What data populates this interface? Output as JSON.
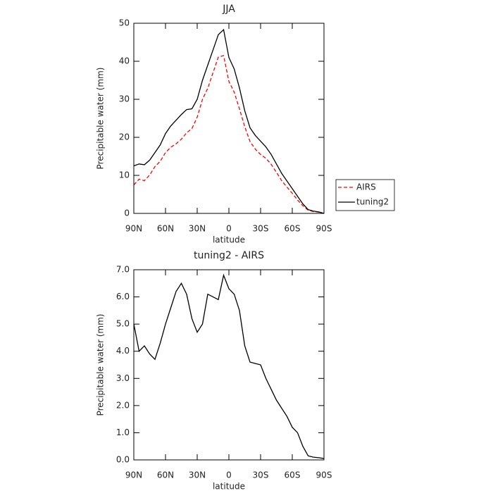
{
  "chart_data": [
    {
      "type": "line",
      "title": "JJA",
      "xlabel": "latitude",
      "ylabel": "Precipitable water (mm)",
      "x": [
        90,
        85,
        80,
        75,
        70,
        65,
        60,
        55,
        50,
        45,
        40,
        35,
        30,
        25,
        20,
        15,
        10,
        5,
        0,
        -5,
        -10,
        -15,
        -20,
        -25,
        -30,
        -35,
        -40,
        -45,
        -50,
        -55,
        -60,
        -65,
        -70,
        -75,
        -80,
        -85,
        -90
      ],
      "series": [
        {
          "name": "AIRS",
          "color": "#ff0000",
          "dashed": true,
          "values": [
            7.5,
            9,
            8.6,
            10.1,
            12.3,
            13.7,
            16,
            17.4,
            18.3,
            19.5,
            21.2,
            22.3,
            25.3,
            30,
            32.9,
            37,
            41.1,
            41.5,
            34.7,
            31.9,
            27.5,
            22.8,
            18.9,
            16.9,
            15.5,
            14.5,
            12.9,
            10.8,
            8.6,
            6.9,
            5.3,
            3.5,
            2,
            0.85,
            0.5,
            0.32,
            0
          ]
        },
        {
          "name": "tuning2",
          "color": "#000000",
          "dashed": false,
          "values": [
            12.5,
            13,
            12.8,
            14,
            16,
            18,
            21,
            23,
            24.5,
            26,
            27.3,
            27.5,
            30,
            35,
            39,
            43,
            47,
            48.3,
            41,
            38,
            33,
            27,
            22.5,
            20.5,
            19,
            17.5,
            15.5,
            13,
            10.5,
            8.5,
            6.5,
            4.5,
            2.5,
            1,
            0.6,
            0.4,
            0
          ]
        }
      ],
      "xlim": [
        90,
        -90
      ],
      "xticks": [
        {
          "value": 90,
          "label": "90N"
        },
        {
          "value": 60,
          "label": "60N"
        },
        {
          "value": 30,
          "label": "30N"
        },
        0,
        {
          "value": -30,
          "label": "30S"
        },
        {
          "value": -60,
          "label": "60S"
        },
        {
          "value": -90,
          "label": "90S"
        }
      ],
      "ylim": [
        0,
        50
      ],
      "yticks": [
        0,
        10,
        20,
        30,
        40,
        50
      ],
      "legend": "right"
    },
    {
      "type": "line",
      "title": "tuning2 - AIRS",
      "xlabel": "latitude",
      "ylabel": "Precipitable water (mm)",
      "x": [
        90,
        85,
        80,
        75,
        70,
        65,
        60,
        55,
        50,
        45,
        40,
        35,
        30,
        25,
        20,
        15,
        10,
        5,
        0,
        -5,
        -10,
        -15,
        -20,
        -25,
        -30,
        -35,
        -40,
        -45,
        -50,
        -55,
        -60,
        -65,
        -70,
        -75,
        -80,
        -85,
        -90
      ],
      "values": [
        5,
        4,
        4.2,
        3.9,
        3.7,
        4.3,
        5,
        5.6,
        6.2,
        6.5,
        6.1,
        5.2,
        4.7,
        5,
        6.1,
        6,
        5.9,
        6.8,
        6.3,
        6.1,
        5.5,
        4.2,
        3.6,
        3.55,
        3.5,
        3,
        2.6,
        2.2,
        1.9,
        1.6,
        1.2,
        1,
        0.5,
        0.15,
        0.1,
        0.08,
        0.05
      ],
      "color": "#000000",
      "xlim": [
        90,
        -90
      ],
      "xticks": [
        {
          "value": 90,
          "label": "90N"
        },
        {
          "value": 60,
          "label": "60N"
        },
        {
          "value": 30,
          "label": "30N"
        },
        0,
        {
          "value": -30,
          "label": "30S"
        },
        {
          "value": -60,
          "label": "60S"
        },
        {
          "value": -90,
          "label": "90S"
        }
      ],
      "ylim": [
        0,
        7
      ],
      "yticks": [
        {
          "value": 0,
          "label": "0.0"
        },
        {
          "value": 1,
          "label": "1.0"
        },
        {
          "value": 2,
          "label": "2.0"
        },
        {
          "value": 3,
          "label": "3.0"
        },
        {
          "value": 4,
          "label": "4.0"
        },
        {
          "value": 5,
          "label": "5.0"
        },
        {
          "value": 6,
          "label": "6.0"
        },
        {
          "value": 7,
          "label": "7.0"
        }
      ]
    }
  ]
}
